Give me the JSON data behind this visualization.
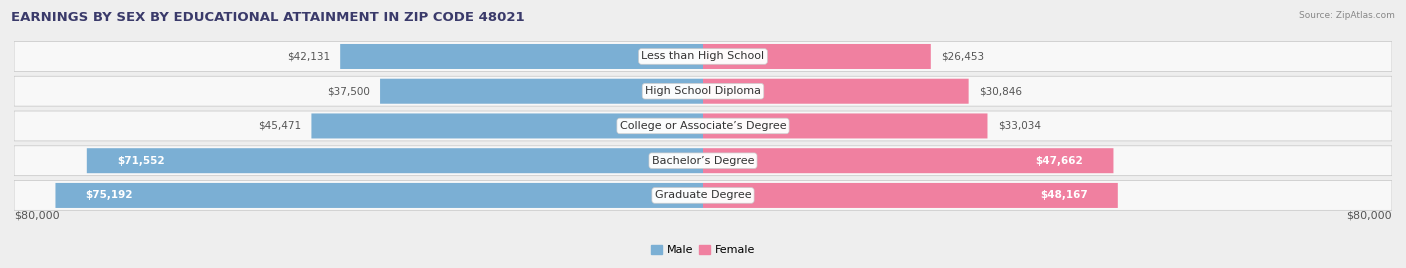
{
  "title": "EARNINGS BY SEX BY EDUCATIONAL ATTAINMENT IN ZIP CODE 48021",
  "source": "Source: ZipAtlas.com",
  "categories": [
    "Less than High School",
    "High School Diploma",
    "College or Associate’s Degree",
    "Bachelor’s Degree",
    "Graduate Degree"
  ],
  "male_values": [
    42131,
    37500,
    45471,
    71552,
    75192
  ],
  "female_values": [
    26453,
    30846,
    33034,
    47662,
    48167
  ],
  "male_color": "#7bafd4",
  "female_color": "#f080a0",
  "max_value": 80000,
  "axis_label": "$80,000",
  "background_color": "#eeeeee",
  "row_bg_color": "#f8f8f8",
  "row_border_color": "#cccccc",
  "title_color": "#3a3a6a",
  "value_color_dark": "#555555",
  "value_color_light": "#ffffff",
  "title_fontsize": 9.5,
  "label_fontsize": 8,
  "value_fontsize": 7.5,
  "source_fontsize": 6.5
}
